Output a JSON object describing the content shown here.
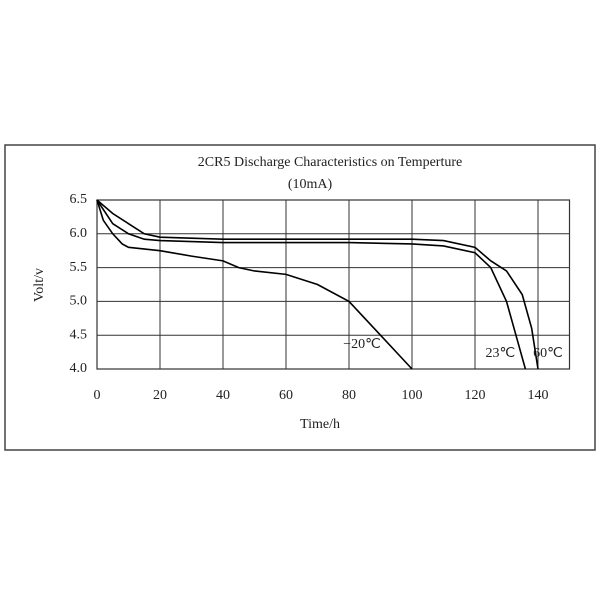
{
  "chart_data": {
    "type": "line",
    "title": "2CR5  Discharge Characteristics on Temperture",
    "subtitle": "(10mA)",
    "x_label": "Time/h",
    "y_label": "Volt/v",
    "series": [
      {
        "name": "−20℃",
        "color": "#000000",
        "x": [
          0,
          2,
          5,
          8,
          10,
          20,
          30,
          40,
          45,
          50,
          60,
          70,
          80,
          90,
          100
        ],
        "values": [
          6.5,
          6.2,
          6.0,
          5.85,
          5.8,
          5.75,
          5.67,
          5.6,
          5.5,
          5.45,
          5.4,
          5.25,
          5.0,
          4.5,
          4.0
        ]
      },
      {
        "name": "23℃",
        "color": "#000000",
        "x": [
          0,
          5,
          10,
          15,
          20,
          40,
          60,
          80,
          100,
          110,
          120,
          125,
          130,
          133,
          136
        ],
        "values": [
          6.5,
          6.15,
          6.0,
          5.92,
          5.9,
          5.87,
          5.87,
          5.87,
          5.85,
          5.82,
          5.72,
          5.5,
          5.0,
          4.5,
          4.0
        ]
      },
      {
        "name": "60℃",
        "color": "#000000",
        "x": [
          0,
          5,
          10,
          15,
          20,
          40,
          60,
          80,
          100,
          110,
          120,
          125,
          130,
          135,
          138,
          140
        ],
        "values": [
          6.5,
          6.3,
          6.15,
          6.0,
          5.95,
          5.92,
          5.92,
          5.92,
          5.92,
          5.9,
          5.8,
          5.6,
          5.45,
          5.1,
          4.6,
          4.0
        ]
      }
    ],
    "xlim": [
      0,
      150
    ],
    "ylim": [
      4.0,
      6.5
    ],
    "xticks": [
      0,
      20,
      40,
      60,
      80,
      100,
      120,
      140
    ],
    "yticks": [
      {
        "value": 4.0,
        "label": "4.0"
      },
      {
        "value": 4.5,
        "label": "4.5"
      },
      {
        "value": 5.0,
        "label": "5.0"
      },
      {
        "value": 5.5,
        "label": "5.5"
      },
      {
        "value": 6.0,
        "label": "6.0"
      },
      {
        "value": 6.5,
        "label": "6.5"
      }
    ],
    "grid": true
  }
}
